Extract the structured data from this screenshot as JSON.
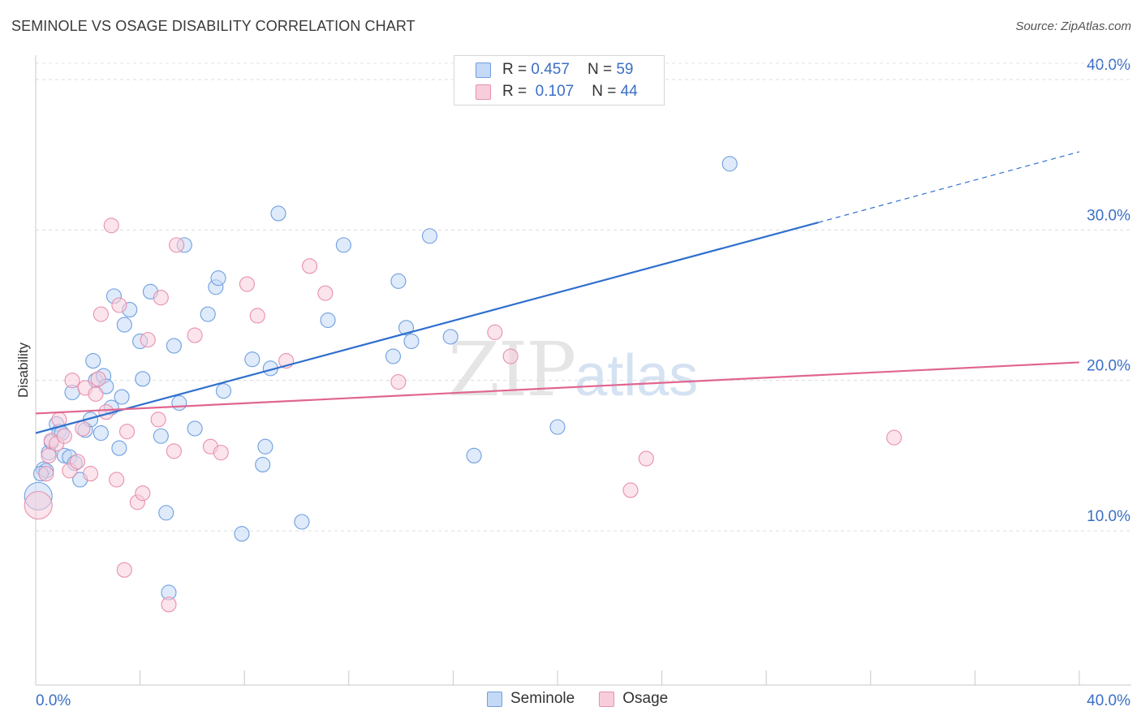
{
  "header": {
    "title": "SEMINOLE VS OSAGE DISABILITY CORRELATION CHART",
    "source": "Source: ZipAtlas.com"
  },
  "watermark": {
    "zip": "ZIP",
    "atlas": "atlas"
  },
  "legend_top": [
    {
      "r_label": "R =",
      "r_value": "0.457",
      "n_label": "N =",
      "n_value": "59",
      "color": "#a9c8f0"
    },
    {
      "r_label": "R =",
      "r_value": "0.107",
      "n_label": "N =",
      "n_value": "44",
      "color": "#f5bfd0"
    }
  ],
  "chart_data": {
    "type": "scatter",
    "title": "SEMINOLE VS OSAGE DISABILITY CORRELATION CHART",
    "xlabel": "",
    "ylabel": "Disability",
    "xlim": [
      0,
      40
    ],
    "ylim": [
      0,
      42
    ],
    "x_tick_labels": [
      "0.0%",
      "40.0%"
    ],
    "y_ticks": [
      10,
      20,
      30,
      40
    ],
    "y_tick_labels": [
      "10.0%",
      "20.0%",
      "30.0%",
      "40.0%"
    ],
    "grid": true,
    "legend_position": "bottom-center",
    "series": [
      {
        "name": "Seminole",
        "color": "#6f9fe0",
        "fill": "#c4d9f5",
        "trend": {
          "x0": 0,
          "y0": 16.5,
          "x1": 30,
          "y1": 30.5,
          "extend_to_x": 40,
          "extend_to_y": 35.2,
          "color": "#2f6fce"
        },
        "points": [
          [
            0.1,
            12.3
          ],
          [
            0.3,
            14.1
          ],
          [
            0.4,
            14.0
          ],
          [
            0.5,
            15.2
          ],
          [
            0.6,
            15.9
          ],
          [
            0.8,
            17.1
          ],
          [
            0.9,
            16.6
          ],
          [
            1.0,
            16.5
          ],
          [
            1.1,
            15.0
          ],
          [
            1.3,
            14.9
          ],
          [
            1.4,
            19.2
          ],
          [
            1.5,
            14.5
          ],
          [
            1.7,
            13.4
          ],
          [
            1.9,
            16.7
          ],
          [
            2.1,
            17.4
          ],
          [
            2.2,
            21.3
          ],
          [
            2.3,
            20.0
          ],
          [
            2.5,
            16.5
          ],
          [
            2.6,
            20.3
          ],
          [
            2.7,
            19.6
          ],
          [
            2.9,
            18.2
          ],
          [
            3.0,
            25.6
          ],
          [
            3.2,
            15.5
          ],
          [
            3.3,
            18.9
          ],
          [
            3.4,
            23.7
          ],
          [
            3.6,
            24.7
          ],
          [
            4.0,
            22.6
          ],
          [
            4.1,
            20.1
          ],
          [
            4.4,
            25.9
          ],
          [
            4.8,
            16.3
          ],
          [
            5.0,
            11.2
          ],
          [
            5.1,
            5.9
          ],
          [
            5.3,
            22.3
          ],
          [
            5.5,
            18.5
          ],
          [
            5.7,
            29.0
          ],
          [
            6.1,
            16.8
          ],
          [
            6.6,
            24.4
          ],
          [
            6.9,
            26.2
          ],
          [
            7.0,
            26.8
          ],
          [
            7.2,
            19.3
          ],
          [
            7.9,
            9.8
          ],
          [
            8.3,
            21.4
          ],
          [
            8.7,
            14.4
          ],
          [
            8.8,
            15.6
          ],
          [
            9.0,
            20.8
          ],
          [
            9.3,
            31.1
          ],
          [
            10.2,
            10.6
          ],
          [
            11.2,
            24.0
          ],
          [
            11.8,
            29.0
          ],
          [
            13.7,
            21.6
          ],
          [
            13.9,
            26.6
          ],
          [
            14.2,
            23.5
          ],
          [
            14.4,
            22.6
          ],
          [
            15.1,
            29.6
          ],
          [
            15.9,
            22.9
          ],
          [
            16.8,
            15.0
          ],
          [
            20.0,
            16.9
          ],
          [
            26.6,
            34.4
          ],
          [
            0.2,
            13.8
          ]
        ]
      },
      {
        "name": "Osage",
        "color": "#e890ad",
        "fill": "#f8cddb",
        "trend": {
          "x0": 0,
          "y0": 17.8,
          "x1": 40,
          "y1": 21.2,
          "color": "#e0668f"
        },
        "points": [
          [
            0.1,
            11.7
          ],
          [
            0.4,
            13.8
          ],
          [
            0.5,
            15.0
          ],
          [
            0.6,
            16.0
          ],
          [
            0.8,
            15.8
          ],
          [
            0.9,
            17.4
          ],
          [
            1.1,
            16.3
          ],
          [
            1.3,
            14.0
          ],
          [
            1.4,
            20.0
          ],
          [
            1.6,
            14.6
          ],
          [
            1.8,
            16.8
          ],
          [
            1.9,
            19.5
          ],
          [
            2.1,
            13.8
          ],
          [
            2.3,
            19.1
          ],
          [
            2.4,
            20.1
          ],
          [
            2.5,
            24.4
          ],
          [
            2.7,
            17.9
          ],
          [
            2.9,
            30.3
          ],
          [
            3.1,
            13.4
          ],
          [
            3.2,
            25.0
          ],
          [
            3.4,
            7.4
          ],
          [
            3.5,
            16.6
          ],
          [
            3.9,
            11.9
          ],
          [
            4.1,
            12.5
          ],
          [
            4.3,
            22.7
          ],
          [
            4.7,
            17.4
          ],
          [
            4.8,
            25.5
          ],
          [
            5.1,
            5.1
          ],
          [
            5.3,
            15.3
          ],
          [
            5.4,
            29.0
          ],
          [
            6.1,
            23.0
          ],
          [
            6.7,
            15.6
          ],
          [
            7.1,
            15.2
          ],
          [
            8.1,
            26.4
          ],
          [
            8.5,
            24.3
          ],
          [
            9.6,
            21.3
          ],
          [
            10.5,
            27.6
          ],
          [
            11.1,
            25.8
          ],
          [
            13.9,
            19.9
          ],
          [
            17.6,
            23.2
          ],
          [
            18.2,
            21.6
          ],
          [
            22.8,
            12.7
          ],
          [
            23.4,
            14.8
          ],
          [
            32.9,
            16.2
          ]
        ]
      }
    ]
  },
  "legend_bottom": [
    {
      "label": "Seminole",
      "color": "#a9c8f0"
    },
    {
      "label": "Osage",
      "color": "#f5bfd0"
    }
  ]
}
